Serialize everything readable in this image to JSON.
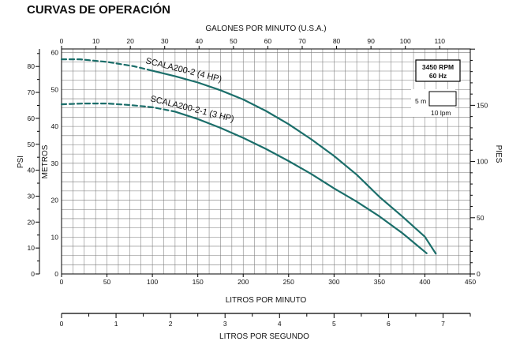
{
  "header": {
    "title": "CURVAS DE OPERACIÓN"
  },
  "colors": {
    "curve": "#1b6e6a",
    "grid": "#7a7a7a",
    "axis": "#000000"
  },
  "info_box": {
    "rpm": "3450 RPM",
    "hz": "60 Hz"
  },
  "scale_box": {
    "vertical_label": "5 m",
    "horizontal_label": "10 lpm"
  },
  "chart_data": {
    "type": "line",
    "title": "CURVAS DE OPERACIÓN",
    "grid": true,
    "axes": {
      "x_bottom": {
        "label": "LITROS POR MINUTO",
        "range": [
          0,
          450
        ],
        "ticks": [
          "0",
          "50",
          "100",
          "150",
          "200",
          "250",
          "300",
          "350",
          "400",
          "450"
        ]
      },
      "x_top": {
        "label": "GALONES POR MINUTO (U.S.A.)",
        "range": [
          0,
          118.9
        ],
        "ticks": [
          "0",
          "10",
          "20",
          "30",
          "40",
          "50",
          "60",
          "70",
          "80",
          "90",
          "100",
          "110"
        ]
      },
      "x_lps": {
        "label": "LITROS POR SEGUNDO",
        "range": [
          0,
          7.5
        ],
        "ticks": [
          "0",
          "1",
          "2",
          "3",
          "4",
          "5",
          "6",
          "7"
        ]
      },
      "y_psi": {
        "label": "PSI",
        "range": [
          0,
          86.7
        ],
        "ticks": [
          "0",
          "10",
          "20",
          "30",
          "40",
          "50",
          "60",
          "70",
          "80"
        ]
      },
      "y_metros": {
        "label": "METROS",
        "range": [
          0,
          61
        ],
        "ticks": [
          "0",
          "10",
          "20",
          "30",
          "40",
          "50",
          "60"
        ]
      },
      "y_pies": {
        "label": "PIES",
        "range": [
          0,
          200
        ],
        "ticks": [
          "0",
          "50",
          "100",
          "150"
        ]
      }
    },
    "x_unit": "litros por minuto",
    "y_unit": "metros",
    "series": [
      {
        "name": "SCALA200-2 (4 HP)",
        "dashed_until_x": 100,
        "x": [
          0,
          20,
          50,
          80,
          100,
          125,
          150,
          175,
          200,
          225,
          250,
          275,
          300,
          325,
          350,
          375,
          400,
          412
        ],
        "y": [
          58.2,
          58.2,
          57.5,
          56.3,
          55.1,
          53.6,
          51.9,
          49.8,
          47.3,
          44.2,
          40.6,
          36.5,
          32.0,
          26.9,
          20.9,
          15.6,
          10.1,
          5.5
        ]
      },
      {
        "name": "SCALA200-2-1 (3 HP)",
        "dashed_until_x": 125,
        "x": [
          0,
          25,
          50,
          75,
          100,
          125,
          150,
          175,
          200,
          225,
          250,
          275,
          300,
          325,
          350,
          375,
          402
        ],
        "y": [
          46.0,
          46.2,
          46.2,
          45.8,
          45.2,
          44.0,
          42.0,
          39.6,
          36.9,
          33.9,
          30.6,
          27.1,
          23.2,
          19.6,
          15.6,
          11.1,
          5.6
        ]
      }
    ]
  }
}
